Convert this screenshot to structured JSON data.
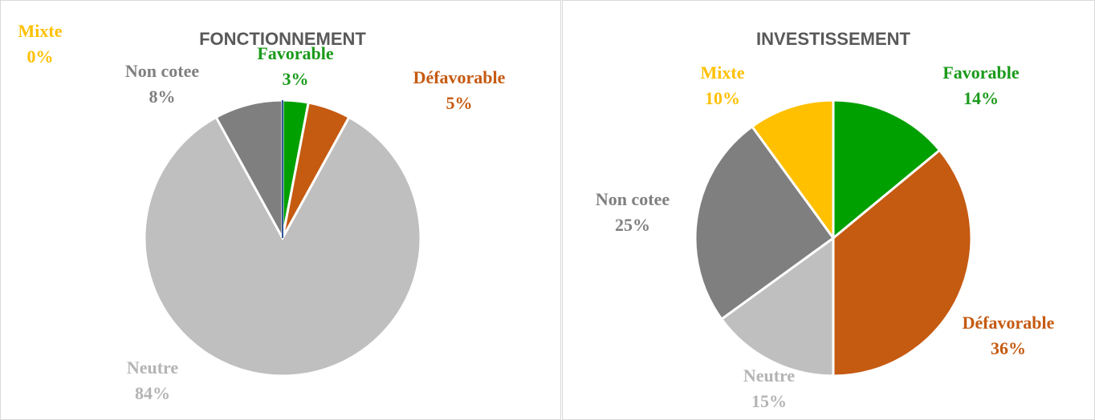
{
  "chart_data": [
    {
      "type": "pie",
      "title": "FONCTIONNEMENT",
      "categories": [
        "Favorable",
        "Défavorable",
        "Neutre",
        "Non cotee",
        "Mixte"
      ],
      "values": [
        3,
        5,
        84,
        8,
        0
      ],
      "value_labels": [
        "3%",
        "5%",
        "84%",
        "8%",
        "0%"
      ],
      "colors": [
        "#00a000",
        "#c55a11",
        "#bfbfbf",
        "#7f7f7f",
        "#ffc000"
      ]
    },
    {
      "type": "pie",
      "title": "INVESTISSEMENT",
      "categories": [
        "Favorable",
        "Défavorable",
        "Neutre",
        "Non cotee",
        "Mixte"
      ],
      "values": [
        14,
        36,
        15,
        25,
        10
      ],
      "value_labels": [
        "14%",
        "36%",
        "15%",
        "25%",
        "10%"
      ],
      "colors": [
        "#00a000",
        "#c55a11",
        "#bfbfbf",
        "#7f7f7f",
        "#ffc000"
      ]
    }
  ]
}
